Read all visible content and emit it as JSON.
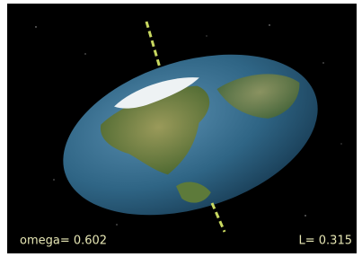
{
  "labels": {
    "omega": "omega= 0.602",
    "L": "L= 0.315"
  }
}
